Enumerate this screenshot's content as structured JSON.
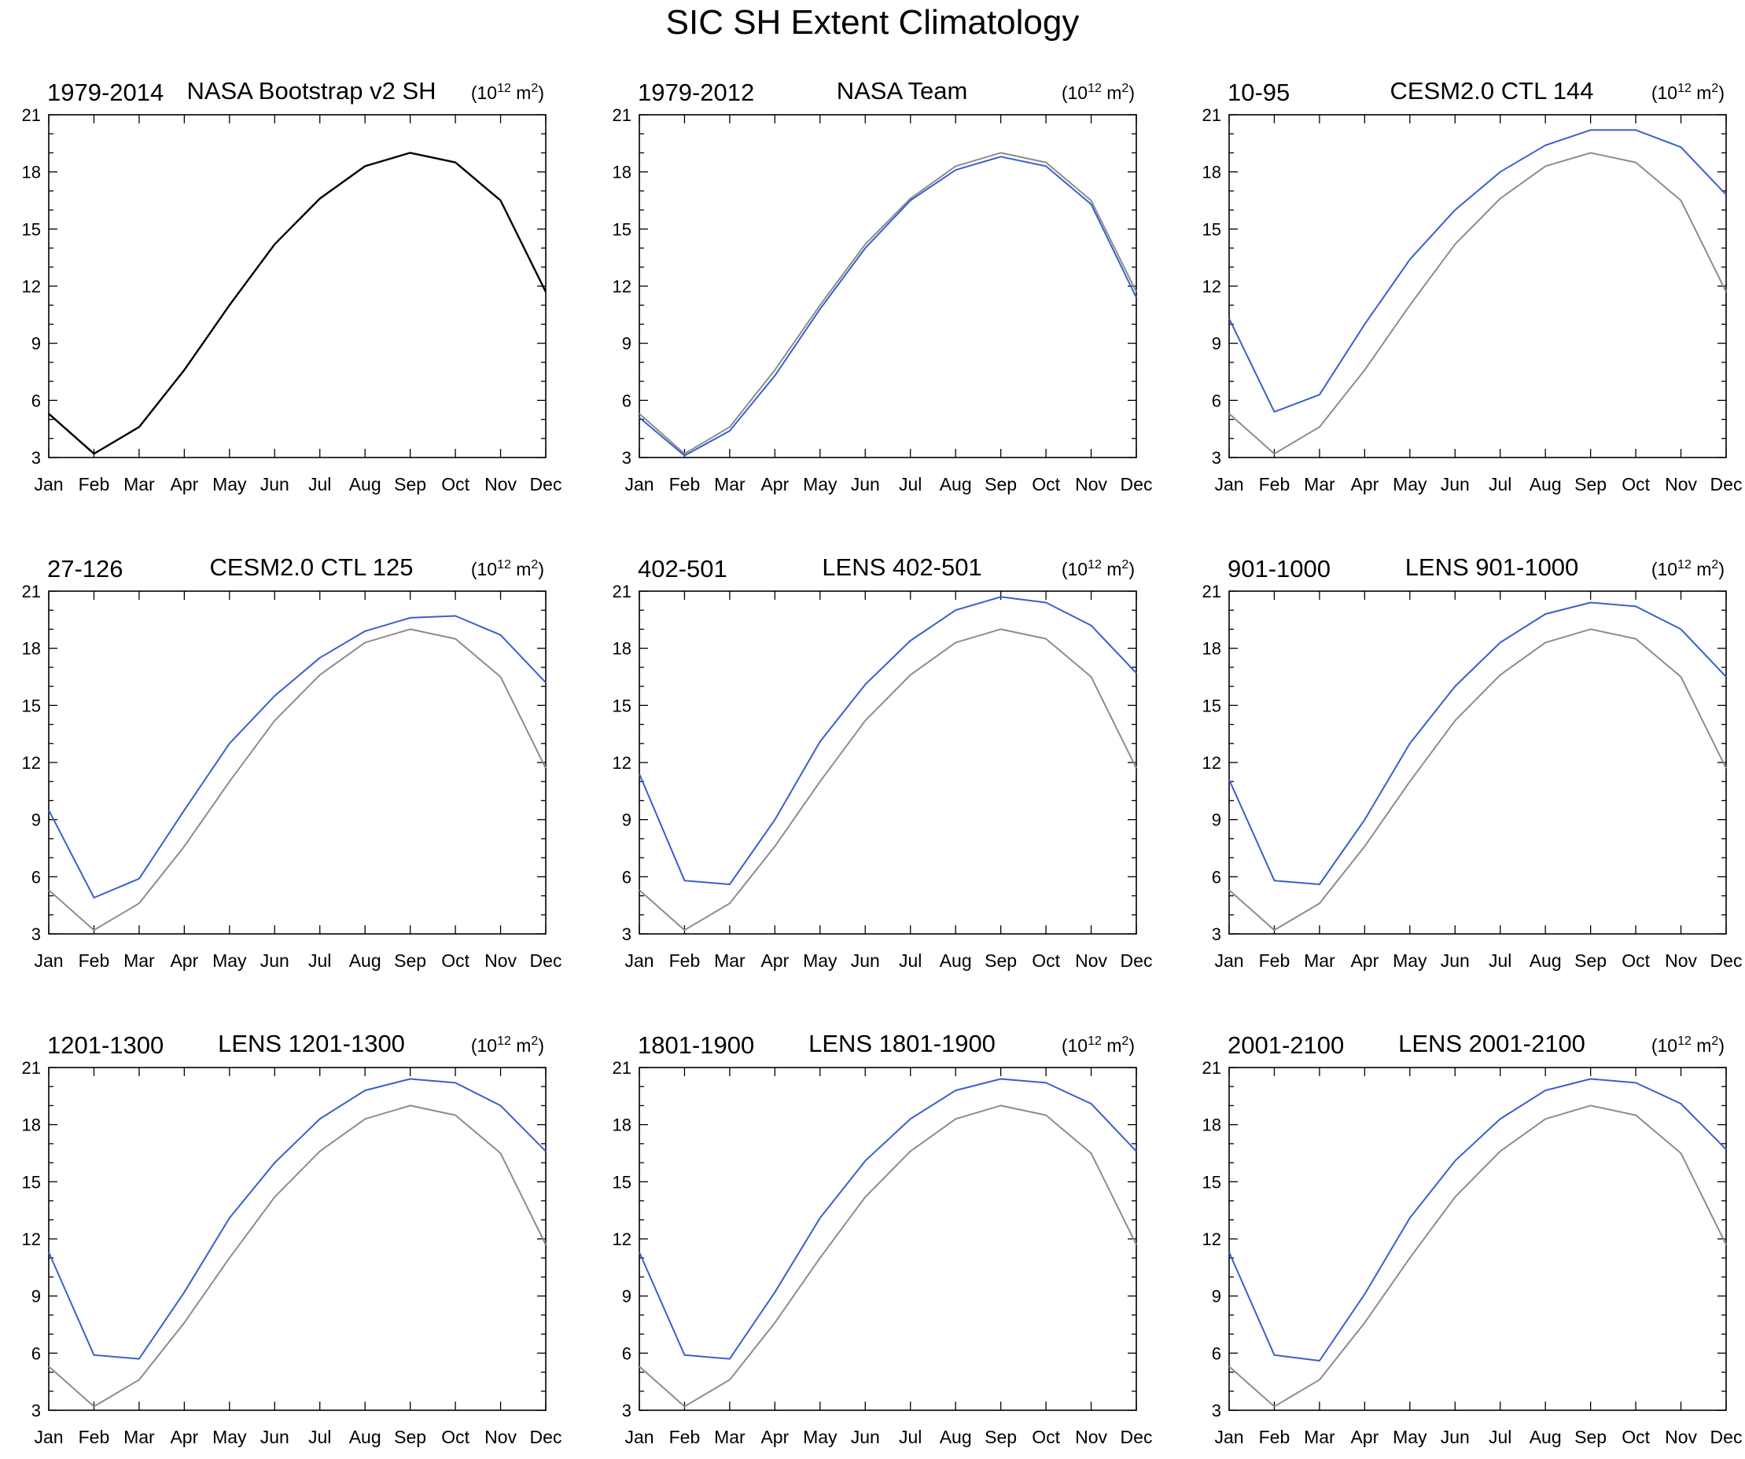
{
  "figure": {
    "title": "SIC SH Extent Climatology"
  },
  "colors": {
    "model": "#3a5fcd",
    "reference": "#8c8c8c",
    "observation": "#000000",
    "axes": "#000000"
  },
  "chart_data": [
    {
      "type": "line",
      "left_label": "1979-2014",
      "title": "NASA Bootstrap v2 SH",
      "units_base": "(10",
      "units_exp1": "12",
      "units_mid": " m",
      "units_exp2": "2",
      "units_close": ")",
      "categories": [
        "Jan",
        "Feb",
        "Mar",
        "Apr",
        "May",
        "Jun",
        "Jul",
        "Aug",
        "Sep",
        "Oct",
        "Nov",
        "Dec"
      ],
      "yticks": [
        "3",
        "6",
        "9",
        "12",
        "15",
        "18",
        "21"
      ],
      "ylim": [
        3,
        21
      ],
      "series": [
        {
          "role": "observation",
          "values": [
            5.3,
            3.2,
            4.6,
            7.6,
            11.0,
            14.2,
            16.6,
            18.3,
            19.0,
            18.5,
            16.5,
            11.7
          ]
        }
      ]
    },
    {
      "type": "line",
      "left_label": "1979-2012",
      "title": "NASA Team",
      "units_base": "(10",
      "units_exp1": "12",
      "units_mid": " m",
      "units_exp2": "2",
      "units_close": ")",
      "categories": [
        "Jan",
        "Feb",
        "Mar",
        "Apr",
        "May",
        "Jun",
        "Jul",
        "Aug",
        "Sep",
        "Oct",
        "Nov",
        "Dec"
      ],
      "yticks": [
        "3",
        "6",
        "9",
        "12",
        "15",
        "18",
        "21"
      ],
      "ylim": [
        3,
        21
      ],
      "series": [
        {
          "role": "reference",
          "values": [
            5.3,
            3.2,
            4.6,
            7.6,
            11.0,
            14.2,
            16.6,
            18.3,
            19.0,
            18.5,
            16.5,
            11.7
          ]
        },
        {
          "role": "model",
          "values": [
            5.1,
            3.1,
            4.4,
            7.3,
            10.8,
            14.0,
            16.5,
            18.1,
            18.8,
            18.3,
            16.3,
            11.4
          ]
        }
      ]
    },
    {
      "type": "line",
      "left_label": "10-95",
      "title": "CESM2.0 CTL 144",
      "units_base": "(10",
      "units_exp1": "12",
      "units_mid": " m",
      "units_exp2": "2",
      "units_close": ")",
      "categories": [
        "Jan",
        "Feb",
        "Mar",
        "Apr",
        "May",
        "Jun",
        "Jul",
        "Aug",
        "Sep",
        "Oct",
        "Nov",
        "Dec"
      ],
      "yticks": [
        "3",
        "6",
        "9",
        "12",
        "15",
        "18",
        "21"
      ],
      "ylim": [
        3,
        21
      ],
      "series": [
        {
          "role": "reference",
          "values": [
            5.3,
            3.2,
            4.6,
            7.6,
            11.0,
            14.2,
            16.6,
            18.3,
            19.0,
            18.5,
            16.5,
            11.7
          ]
        },
        {
          "role": "model",
          "values": [
            10.3,
            5.4,
            6.3,
            10.0,
            13.4,
            16.0,
            18.0,
            19.4,
            20.2,
            20.2,
            19.3,
            16.8
          ]
        }
      ]
    },
    {
      "type": "line",
      "left_label": "27-126",
      "title": "CESM2.0 CTL 125",
      "units_base": "(10",
      "units_exp1": "12",
      "units_mid": " m",
      "units_exp2": "2",
      "units_close": ")",
      "categories": [
        "Jan",
        "Feb",
        "Mar",
        "Apr",
        "May",
        "Jun",
        "Jul",
        "Aug",
        "Sep",
        "Oct",
        "Nov",
        "Dec"
      ],
      "yticks": [
        "3",
        "6",
        "9",
        "12",
        "15",
        "18",
        "21"
      ],
      "ylim": [
        3,
        21
      ],
      "series": [
        {
          "role": "reference",
          "values": [
            5.3,
            3.2,
            4.6,
            7.6,
            11.0,
            14.2,
            16.6,
            18.3,
            19.0,
            18.5,
            16.5,
            11.7
          ]
        },
        {
          "role": "model",
          "values": [
            9.5,
            4.9,
            5.9,
            9.5,
            13.0,
            15.5,
            17.5,
            18.9,
            19.6,
            19.7,
            18.7,
            16.2
          ]
        }
      ]
    },
    {
      "type": "line",
      "left_label": "402-501",
      "title": "LENS 402-501",
      "units_base": "(10",
      "units_exp1": "12",
      "units_mid": " m",
      "units_exp2": "2",
      "units_close": ")",
      "categories": [
        "Jan",
        "Feb",
        "Mar",
        "Apr",
        "May",
        "Jun",
        "Jul",
        "Aug",
        "Sep",
        "Oct",
        "Nov",
        "Dec"
      ],
      "yticks": [
        "3",
        "6",
        "9",
        "12",
        "15",
        "18",
        "21"
      ],
      "ylim": [
        3,
        21
      ],
      "series": [
        {
          "role": "reference",
          "values": [
            5.3,
            3.2,
            4.6,
            7.6,
            11.0,
            14.2,
            16.6,
            18.3,
            19.0,
            18.5,
            16.5,
            11.7
          ]
        },
        {
          "role": "model",
          "values": [
            11.4,
            5.8,
            5.6,
            9.0,
            13.1,
            16.1,
            18.4,
            20.0,
            20.7,
            20.4,
            19.2,
            16.7
          ]
        }
      ]
    },
    {
      "type": "line",
      "left_label": "901-1000",
      "title": "LENS 901-1000",
      "units_base": "(10",
      "units_exp1": "12",
      "units_mid": " m",
      "units_exp2": "2",
      "units_close": ")",
      "categories": [
        "Jan",
        "Feb",
        "Mar",
        "Apr",
        "May",
        "Jun",
        "Jul",
        "Aug",
        "Sep",
        "Oct",
        "Nov",
        "Dec"
      ],
      "yticks": [
        "3",
        "6",
        "9",
        "12",
        "15",
        "18",
        "21"
      ],
      "ylim": [
        3,
        21
      ],
      "series": [
        {
          "role": "reference",
          "values": [
            5.3,
            3.2,
            4.6,
            7.6,
            11.0,
            14.2,
            16.6,
            18.3,
            19.0,
            18.5,
            16.5,
            11.7
          ]
        },
        {
          "role": "model",
          "values": [
            11.1,
            5.8,
            5.6,
            9.0,
            13.0,
            16.0,
            18.3,
            19.8,
            20.4,
            20.2,
            19.0,
            16.5
          ]
        }
      ]
    },
    {
      "type": "line",
      "left_label": "1201-1300",
      "title": "LENS 1201-1300",
      "units_base": "(10",
      "units_exp1": "12",
      "units_mid": " m",
      "units_exp2": "2",
      "units_close": ")",
      "categories": [
        "Jan",
        "Feb",
        "Mar",
        "Apr",
        "May",
        "Jun",
        "Jul",
        "Aug",
        "Sep",
        "Oct",
        "Nov",
        "Dec"
      ],
      "yticks": [
        "3",
        "6",
        "9",
        "12",
        "15",
        "18",
        "21"
      ],
      "ylim": [
        3,
        21
      ],
      "series": [
        {
          "role": "reference",
          "values": [
            5.3,
            3.2,
            4.6,
            7.6,
            11.0,
            14.2,
            16.6,
            18.3,
            19.0,
            18.5,
            16.5,
            11.7
          ]
        },
        {
          "role": "model",
          "values": [
            11.3,
            5.9,
            5.7,
            9.2,
            13.1,
            16.0,
            18.3,
            19.8,
            20.4,
            20.2,
            19.0,
            16.6
          ]
        }
      ]
    },
    {
      "type": "line",
      "left_label": "1801-1900",
      "title": "LENS 1801-1900",
      "units_base": "(10",
      "units_exp1": "12",
      "units_mid": " m",
      "units_exp2": "2",
      "units_close": ")",
      "categories": [
        "Jan",
        "Feb",
        "Mar",
        "Apr",
        "May",
        "Jun",
        "Jul",
        "Aug",
        "Sep",
        "Oct",
        "Nov",
        "Dec"
      ],
      "yticks": [
        "3",
        "6",
        "9",
        "12",
        "15",
        "18",
        "21"
      ],
      "ylim": [
        3,
        21
      ],
      "series": [
        {
          "role": "reference",
          "values": [
            5.3,
            3.2,
            4.6,
            7.6,
            11.0,
            14.2,
            16.6,
            18.3,
            19.0,
            18.5,
            16.5,
            11.7
          ]
        },
        {
          "role": "model",
          "values": [
            11.3,
            5.9,
            5.7,
            9.2,
            13.1,
            16.1,
            18.3,
            19.8,
            20.4,
            20.2,
            19.1,
            16.6
          ]
        }
      ]
    },
    {
      "type": "line",
      "left_label": "2001-2100",
      "title": "LENS 2001-2100",
      "units_base": "(10",
      "units_exp1": "12",
      "units_mid": " m",
      "units_exp2": "2",
      "units_close": ")",
      "categories": [
        "Jan",
        "Feb",
        "Mar",
        "Apr",
        "May",
        "Jun",
        "Jul",
        "Aug",
        "Sep",
        "Oct",
        "Nov",
        "Dec"
      ],
      "yticks": [
        "3",
        "6",
        "9",
        "12",
        "15",
        "18",
        "21"
      ],
      "ylim": [
        3,
        21
      ],
      "series": [
        {
          "role": "reference",
          "values": [
            5.3,
            3.2,
            4.6,
            7.6,
            11.0,
            14.2,
            16.6,
            18.3,
            19.0,
            18.5,
            16.5,
            11.7
          ]
        },
        {
          "role": "model",
          "values": [
            11.3,
            5.9,
            5.6,
            9.1,
            13.1,
            16.1,
            18.3,
            19.8,
            20.4,
            20.2,
            19.1,
            16.7
          ]
        }
      ]
    }
  ]
}
